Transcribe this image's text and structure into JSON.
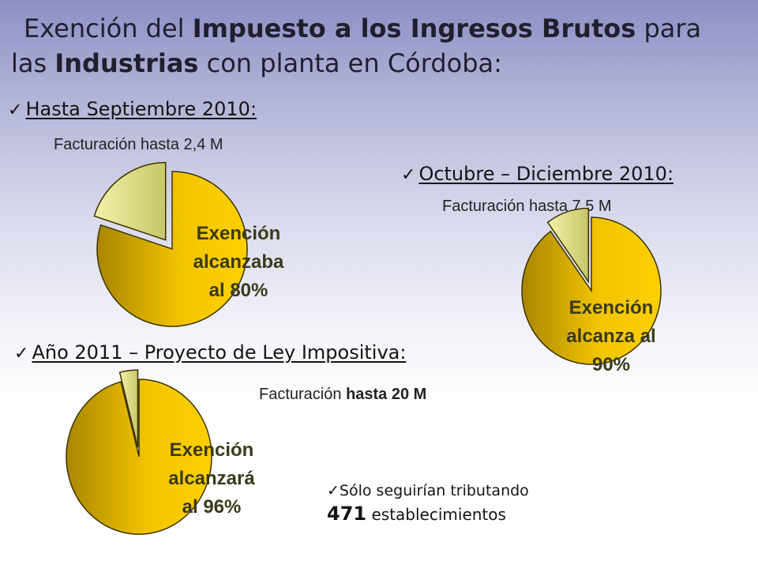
{
  "title": {
    "line1_pre": "Exención del ",
    "line1_bold": "Impuesto a los Ingresos Brutos",
    "line1_post": " para",
    "line2_pre": "las ",
    "line2_bold": "Industrias",
    "line2_post": " con planta en Córdoba:"
  },
  "sections": [
    {
      "heading": "Hasta Septiembre 2010:",
      "facturacion_pre": "Facturación hasta 2,4 M",
      "facturacion_bold": "",
      "label_lines": [
        "Exención",
        "alcanzaba",
        "al 80%"
      ]
    },
    {
      "heading": "Octubre – Diciembre 2010:",
      "facturacion_pre": "Facturación hasta 7,5 M",
      "facturacion_bold": "",
      "label_lines": [
        "Exención",
        "alcanza al",
        "90%"
      ]
    },
    {
      "heading": "Año 2011 – Proyecto de Ley Impositiva:",
      "facturacion_pre": "Facturación ",
      "facturacion_bold": "hasta 20 M",
      "label_lines": [
        "Exención",
        "alcanzará",
        "al 96%"
      ]
    }
  ],
  "note": {
    "line1": "Sólo seguirían tributando",
    "number": "471",
    "line2_rest": " establecimientos"
  },
  "icons": {
    "check": "✓"
  },
  "colors": {
    "exempt": "#f2c400",
    "exempt_dark": "#a88600",
    "remaining": "#f4f2a8",
    "label": "#3a3a1a"
  },
  "chart_data": [
    {
      "type": "pie",
      "title": "Hasta Septiembre 2010:",
      "slices": [
        {
          "label": "Exención",
          "value": 80
        },
        {
          "label": "",
          "value": 20
        }
      ]
    },
    {
      "type": "pie",
      "title": "Octubre – Diciembre 2010:",
      "slices": [
        {
          "label": "Exención",
          "value": 90
        },
        {
          "label": "",
          "value": 10
        }
      ]
    },
    {
      "type": "pie",
      "title": "Año 2011 – Proyecto de Ley Impositiva:",
      "slices": [
        {
          "label": "Exención",
          "value": 96
        },
        {
          "label": "",
          "value": 4
        }
      ]
    }
  ]
}
